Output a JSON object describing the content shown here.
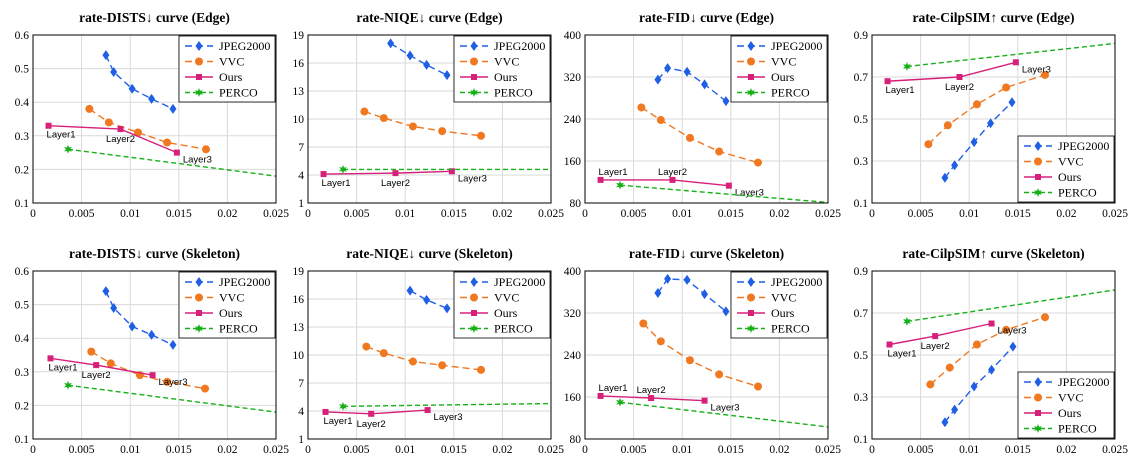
{
  "colors": {
    "JPEG2000": "#1f5fe6",
    "VVC": "#f07820",
    "Ours": "#d6207a",
    "PERCO": "#18b018"
  },
  "legend_entries": [
    "JPEG2000",
    "VVC",
    "Ours",
    "PERCO"
  ],
  "chart_data": [
    {
      "type": "line",
      "title": "rate-DISTS↓ curve (Edge)",
      "xlim": [
        0,
        0.025
      ],
      "x_ticks": [
        "0",
        "0.005",
        "0.01",
        "0.015",
        "0.02",
        "0.025"
      ],
      "ylim": [
        0.1,
        0.6
      ],
      "y_ticks": [
        "0.1",
        "0.2",
        "0.3",
        "0.4",
        "0.5",
        "0.6"
      ],
      "grid": true,
      "legend": "top-right",
      "series": [
        {
          "name": "JPEG2000",
          "x": [
            0.0075,
            0.0083,
            0.0102,
            0.0122,
            0.0144
          ],
          "y": [
            0.54,
            0.49,
            0.44,
            0.41,
            0.38
          ]
        },
        {
          "name": "VVC",
          "x": [
            0.0058,
            0.0078,
            0.0108,
            0.0138,
            0.0178
          ],
          "y": [
            0.38,
            0.34,
            0.31,
            0.28,
            0.26
          ]
        },
        {
          "name": "Ours",
          "x": [
            0.0016,
            0.009,
            0.0148
          ],
          "y": [
            0.33,
            0.32,
            0.25
          ],
          "labels": [
            "Layer1",
            "Layer2",
            "Layer3"
          ]
        },
        {
          "name": "PERCO",
          "x": [
            0.0036,
            0.025
          ],
          "y": [
            0.26,
            0.18
          ]
        }
      ]
    },
    {
      "type": "line",
      "title": "rate-NIQE↓ curve (Edge)",
      "xlim": [
        0,
        0.025
      ],
      "x_ticks": [
        "0",
        "0.005",
        "0.01",
        "0.015",
        "0.02",
        "0.025"
      ],
      "ylim": [
        1,
        19
      ],
      "y_ticks": [
        "1",
        "4",
        "7",
        "10",
        "13",
        "16",
        "19"
      ],
      "grid": true,
      "legend": "top-right",
      "series": [
        {
          "name": "JPEG2000",
          "x": [
            0.0085,
            0.0105,
            0.0122,
            0.0143
          ],
          "y": [
            18.1,
            16.8,
            15.8,
            14.7
          ]
        },
        {
          "name": "VVC",
          "x": [
            0.0058,
            0.0078,
            0.0108,
            0.0138,
            0.0178
          ],
          "y": [
            10.8,
            10.1,
            9.2,
            8.7,
            8.2
          ]
        },
        {
          "name": "Ours",
          "x": [
            0.0016,
            0.009,
            0.0148
          ],
          "y": [
            4.1,
            4.2,
            4.4
          ],
          "labels": [
            "Layer1",
            "Layer2",
            "Layer3"
          ]
        },
        {
          "name": "PERCO",
          "x": [
            0.0036,
            0.025
          ],
          "y": [
            4.6,
            4.6
          ]
        }
      ]
    },
    {
      "type": "line",
      "title": "rate-FID↓ curve (Edge)",
      "xlim": [
        0,
        0.025
      ],
      "x_ticks": [
        "0",
        "0.005",
        "0.01",
        "0.015",
        "0.02",
        "0.025"
      ],
      "ylim": [
        80,
        400
      ],
      "y_ticks": [
        "80",
        "160",
        "240",
        "320",
        "400"
      ],
      "grid": true,
      "legend": "top-right",
      "series": [
        {
          "name": "JPEG2000",
          "x": [
            0.0075,
            0.0085,
            0.0105,
            0.0123,
            0.0145
          ],
          "y": [
            315,
            337,
            330,
            306,
            274
          ]
        },
        {
          "name": "VVC",
          "x": [
            0.0058,
            0.0078,
            0.0108,
            0.0138,
            0.0178
          ],
          "y": [
            262,
            238,
            204,
            178,
            157
          ]
        },
        {
          "name": "Ours",
          "x": [
            0.0016,
            0.009,
            0.0148
          ],
          "y": [
            124,
            124,
            113
          ],
          "labels": [
            "Layer1",
            "Layer2",
            "Layer3"
          ]
        },
        {
          "name": "PERCO",
          "x": [
            0.0036,
            0.025
          ],
          "y": [
            114,
            81
          ]
        }
      ]
    },
    {
      "type": "line",
      "title": "rate-CilpSIM↑ curve (Edge)",
      "xlim": [
        0,
        0.025
      ],
      "x_ticks": [
        "0",
        "0.005",
        "0.01",
        "0.015",
        "0.02",
        "0.025"
      ],
      "ylim": [
        0.1,
        0.9
      ],
      "y_ticks": [
        "0.1",
        "0.3",
        "0.5",
        "0.7",
        "0.9"
      ],
      "grid": true,
      "legend": "bottom-right",
      "series": [
        {
          "name": "JPEG2000",
          "x": [
            0.0075,
            0.0085,
            0.0105,
            0.0122,
            0.0144
          ],
          "y": [
            0.22,
            0.28,
            0.39,
            0.48,
            0.58
          ]
        },
        {
          "name": "VVC",
          "x": [
            0.0058,
            0.0078,
            0.0108,
            0.0138,
            0.0178
          ],
          "y": [
            0.38,
            0.47,
            0.57,
            0.65,
            0.71
          ]
        },
        {
          "name": "Ours",
          "x": [
            0.0016,
            0.009,
            0.0148
          ],
          "y": [
            0.68,
            0.7,
            0.77
          ],
          "labels": [
            "Layer1",
            "Layer2",
            "Layer3"
          ]
        },
        {
          "name": "PERCO",
          "x": [
            0.0036,
            0.025
          ],
          "y": [
            0.75,
            0.86
          ]
        }
      ]
    },
    {
      "type": "line",
      "title": "rate-DISTS↓ curve (Skeleton)",
      "xlim": [
        0,
        0.025
      ],
      "x_ticks": [
        "0",
        "0.005",
        "0.01",
        "0.015",
        "0.02",
        "0.025"
      ],
      "ylim": [
        0.1,
        0.6
      ],
      "y_ticks": [
        "0.1",
        "0.2",
        "0.3",
        "0.4",
        "0.5",
        "0.6"
      ],
      "grid": true,
      "legend": "top-right",
      "series": [
        {
          "name": "JPEG2000",
          "x": [
            0.0075,
            0.0083,
            0.0102,
            0.0122,
            0.0144
          ],
          "y": [
            0.54,
            0.49,
            0.435,
            0.41,
            0.38
          ]
        },
        {
          "name": "VVC",
          "x": [
            0.006,
            0.008,
            0.011,
            0.0138,
            0.0177
          ],
          "y": [
            0.36,
            0.325,
            0.29,
            0.27,
            0.25
          ]
        },
        {
          "name": "Ours",
          "x": [
            0.0018,
            0.0065,
            0.0123
          ],
          "y": [
            0.34,
            0.32,
            0.29
          ],
          "labels": [
            "Layer1",
            "Layer2",
            "Layer3"
          ]
        },
        {
          "name": "PERCO",
          "x": [
            0.0036,
            0.025
          ],
          "y": [
            0.26,
            0.18
          ]
        }
      ]
    },
    {
      "type": "line",
      "title": "rate-NIQE↓ curve (Skeleton)",
      "xlim": [
        0,
        0.025
      ],
      "x_ticks": [
        "0",
        "0.005",
        "0.01",
        "0.015",
        "0.02",
        "0.025"
      ],
      "ylim": [
        1,
        19
      ],
      "y_ticks": [
        "1",
        "4",
        "7",
        "10",
        "13",
        "16",
        "19"
      ],
      "grid": true,
      "legend": "top-right",
      "series": [
        {
          "name": "JPEG2000",
          "x": [
            0.0105,
            0.0122,
            0.0143
          ],
          "y": [
            16.9,
            15.9,
            15.0
          ]
        },
        {
          "name": "VVC",
          "x": [
            0.006,
            0.0078,
            0.0108,
            0.0138,
            0.0178
          ],
          "y": [
            10.9,
            10.2,
            9.3,
            8.9,
            8.4
          ]
        },
        {
          "name": "Ours",
          "x": [
            0.0018,
            0.0065,
            0.0123
          ],
          "y": [
            3.9,
            3.7,
            4.1
          ],
          "labels": [
            "Layer1",
            "Layer2",
            "Layer3"
          ]
        },
        {
          "name": "PERCO",
          "x": [
            0.0036,
            0.025
          ],
          "y": [
            4.5,
            4.8
          ]
        }
      ]
    },
    {
      "type": "line",
      "title": "rate-FID↓ curve (Skeleton)",
      "xlim": [
        0,
        0.025
      ],
      "x_ticks": [
        "0",
        "0.005",
        "0.01",
        "0.015",
        "0.02",
        "0.025"
      ],
      "ylim": [
        80,
        400
      ],
      "y_ticks": [
        "80",
        "160",
        "240",
        "320",
        "400"
      ],
      "grid": true,
      "legend": "top-right",
      "series": [
        {
          "name": "JPEG2000",
          "x": [
            0.0075,
            0.0085,
            0.0105,
            0.0123,
            0.0145
          ],
          "y": [
            358,
            385,
            383,
            356,
            323
          ]
        },
        {
          "name": "VVC",
          "x": [
            0.006,
            0.0078,
            0.0108,
            0.0138,
            0.0178
          ],
          "y": [
            300,
            266,
            230,
            203,
            180
          ]
        },
        {
          "name": "Ours",
          "x": [
            0.0016,
            0.0068,
            0.0123
          ],
          "y": [
            162,
            158,
            153
          ],
          "labels": [
            "Layer1",
            "Layer2",
            "Layer3"
          ]
        },
        {
          "name": "PERCO",
          "x": [
            0.0036,
            0.025
          ],
          "y": [
            150,
            103
          ]
        }
      ]
    },
    {
      "type": "line",
      "title": "rate-CilpSIM↑ curve (Skeleton)",
      "xlim": [
        0,
        0.025
      ],
      "x_ticks": [
        "0",
        "0.005",
        "0.01",
        "0.015",
        "0.02",
        "0.025"
      ],
      "ylim": [
        0.1,
        0.9
      ],
      "y_ticks": [
        "0.1",
        "0.3",
        "0.5",
        "0.7",
        "0.9"
      ],
      "grid": true,
      "legend": "bottom-right",
      "series": [
        {
          "name": "JPEG2000",
          "x": [
            0.0075,
            0.0085,
            0.0105,
            0.0123,
            0.0145
          ],
          "y": [
            0.18,
            0.24,
            0.35,
            0.43,
            0.54
          ]
        },
        {
          "name": "VVC",
          "x": [
            0.006,
            0.008,
            0.0108,
            0.0138,
            0.0178
          ],
          "y": [
            0.36,
            0.44,
            0.55,
            0.62,
            0.68
          ]
        },
        {
          "name": "Ours",
          "x": [
            0.0018,
            0.0065,
            0.0123
          ],
          "y": [
            0.55,
            0.59,
            0.65
          ],
          "labels": [
            "Layer1",
            "Layer2",
            "Layer3"
          ]
        },
        {
          "name": "PERCO",
          "x": [
            0.0036,
            0.025
          ],
          "y": [
            0.66,
            0.81
          ]
        }
      ]
    }
  ]
}
